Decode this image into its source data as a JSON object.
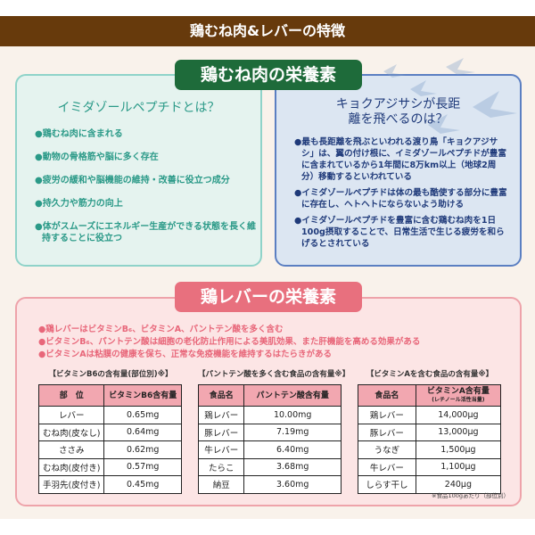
{
  "header": {
    "title": "鶏むね肉&レバーの特徴"
  },
  "chicken": {
    "label": "鶏むね肉の栄養素",
    "left": {
      "heading": "イミダゾールペプチドとは？",
      "bullets": [
        "●鶏むね肉に含まれる",
        "●動物の骨格筋や脳に多く存在",
        "●疲労の緩和や脳機能の維持・改善に役立つ成分",
        "●持久力や筋力の向上",
        "●体がスムーズにエネルギー生産ができる状態を長く維持することに役立つ"
      ]
    },
    "right": {
      "heading": "キョクアジサシが長距離を飛べるのは？",
      "bullets": [
        "●最も長距離を飛ぶといわれる渡り鳥「キョクアジサシ」は、翼の付け根に、イミダゾールペプチドが豊富に含まれているから1年間に8万km以上（地球2周分）移動するといわれている",
        "●イミダゾールペプチドは体の最も酷使する部分に豊富に存在し、ヘトヘトにならないよう助ける",
        "●イミダゾールペプチドを豊富に含む鶏むね肉を1日100g摂取することで、日常生活で生じる疲労を和らげるとされている"
      ]
    }
  },
  "liver": {
    "label": "鶏レバーの栄養素",
    "bullets": [
      "●鶏レバーはビタミンB₆、ビタミンA、パントテン酸を多く含む",
      "●ビタミンB₆、パントテン酸は細胞の老化防止作用による美肌効果、また肝機能を高める効果がある",
      "●ビタミンAは粘膜の健康を保ち、正常な免疫機能を維持するはたらきがある"
    ],
    "tables": [
      {
        "title": "【ビタミンB6の含有量(部位別)※】",
        "headers": [
          "部　位",
          "ビタミンB6含有量"
        ],
        "rows": [
          [
            "レバー",
            "0.65mg"
          ],
          [
            "むね肉(皮なし)",
            "0.64mg"
          ],
          [
            "ささみ",
            "0.62mg"
          ],
          [
            "むね肉(皮付き)",
            "0.57mg"
          ],
          [
            "手羽先(皮付き)",
            "0.45mg"
          ]
        ]
      },
      {
        "title": "【パントテン酸を多く含む食品の含有量※】",
        "headers": [
          "食品名",
          "パントテン酸含有量"
        ],
        "rows": [
          [
            "鶏レバー",
            "10.00mg"
          ],
          [
            "豚レバー",
            "7.19mg"
          ],
          [
            "牛レバー",
            "6.40mg"
          ],
          [
            "たらこ",
            "3.68mg"
          ],
          [
            "納豆",
            "3.60mg"
          ]
        ]
      },
      {
        "title": "【ビタミンAを含む食品の含有量※】",
        "headers": [
          "食品名",
          "ビタミンA含有量"
        ],
        "subheader": "(レチノール活性当量)",
        "rows": [
          [
            "鶏レバー",
            "14,000μg"
          ],
          [
            "豚レバー",
            "13,000μg"
          ],
          [
            "うなぎ",
            "1,500μg"
          ],
          [
            "牛レバー",
            "1,100μg"
          ],
          [
            "しらす干し",
            "240μg"
          ]
        ]
      }
    ],
    "note": "※食品100gあたり（部位別）"
  },
  "colors": {
    "header": "#673a0c",
    "green": "#1e6b3a",
    "teal": "#2b9a88",
    "navy": "#1f3a7a",
    "pink": "#e8707e"
  }
}
